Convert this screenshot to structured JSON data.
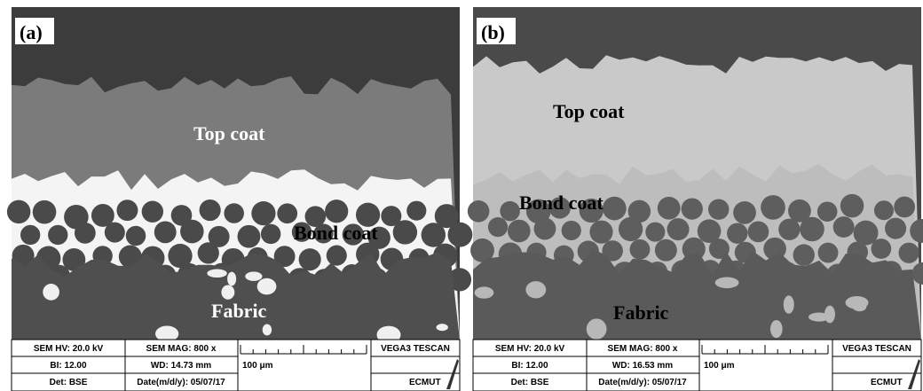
{
  "panels": [
    {
      "label": "(a)",
      "regions": {
        "top": "Top coat",
        "bond": "Bond coat",
        "fabric": "Fabric"
      },
      "info": {
        "hv": "SEM HV: 20.0 kV",
        "mag": "SEM MAG: 800 x",
        "brand": "VEGA3 TESCAN",
        "bi": "BI: 12.00",
        "wd": "WD: 14.73 mm",
        "scale": "100 μm",
        "det": "Det: BSE",
        "date": "Date(m/d/y): 05/07/17",
        "lab": "ECMUT"
      }
    },
    {
      "label": "(b)",
      "regions": {
        "top": "Top coat",
        "bond": "Bond coat",
        "fabric": "Fabric"
      },
      "info": {
        "hv": "SEM HV: 20.0 kV",
        "mag": "SEM MAG: 800 x",
        "brand": "VEGA3 TESCAN",
        "bi": "BI: 12.00",
        "wd": "WD: 16.53 mm",
        "scale": "100 μm",
        "det": "Det: BSE",
        "date": "Date(m/d/y): 05/07/17",
        "lab": "ECMUT"
      }
    }
  ]
}
